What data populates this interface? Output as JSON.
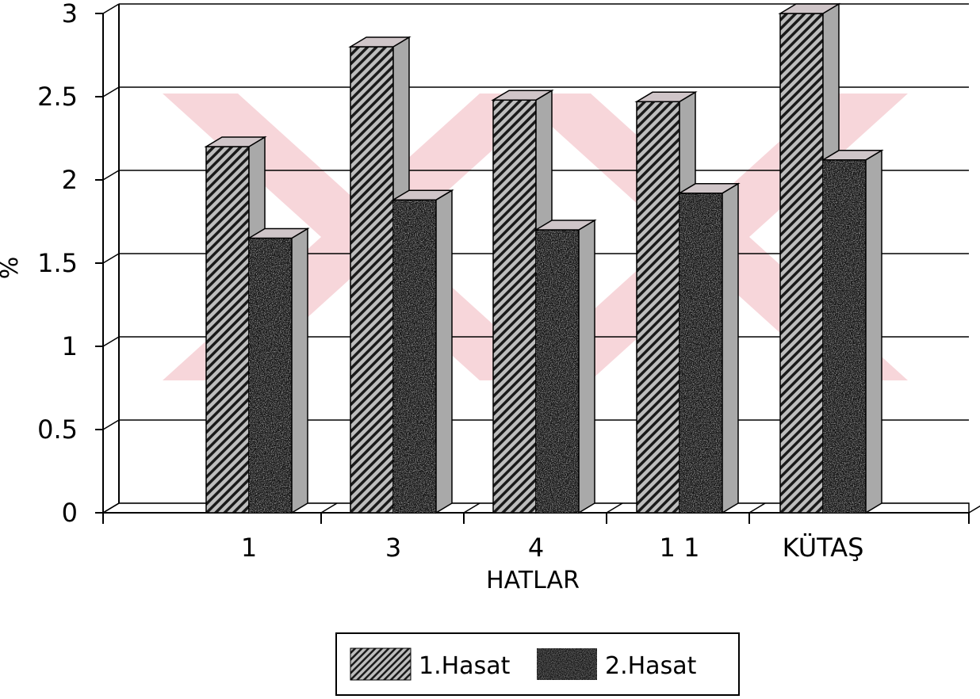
{
  "chart_data": {
    "type": "bar",
    "style": "3d-clustered",
    "categories": [
      "1",
      "3",
      "4",
      "1 1",
      "KÜTAŞ"
    ],
    "series": [
      {
        "name": "1.Hasat",
        "values": [
          2.2,
          2.8,
          2.48,
          2.47,
          3.0
        ],
        "pattern": "diagonal-hatch"
      },
      {
        "name": "2.Hasat",
        "values": [
          1.65,
          1.88,
          1.7,
          1.92,
          2.12
        ],
        "pattern": "dark-speckle"
      }
    ],
    "xlabel": "HATLAR",
    "ylabel": "%",
    "ylim": [
      0,
      3
    ],
    "yticks": [
      "0",
      "0.5",
      "1",
      "1.5",
      "2",
      "2.5",
      "3"
    ],
    "grid": true,
    "legend_position": "bottom-center",
    "colors": {
      "hatch_light": "#bdbdbd",
      "hatch_dark": "#1a1a1a",
      "series2_base": "#151515",
      "side_face": "#a9a9a9",
      "top_face": "#cfc5c8",
      "watermark": "#f6cfd4"
    }
  }
}
